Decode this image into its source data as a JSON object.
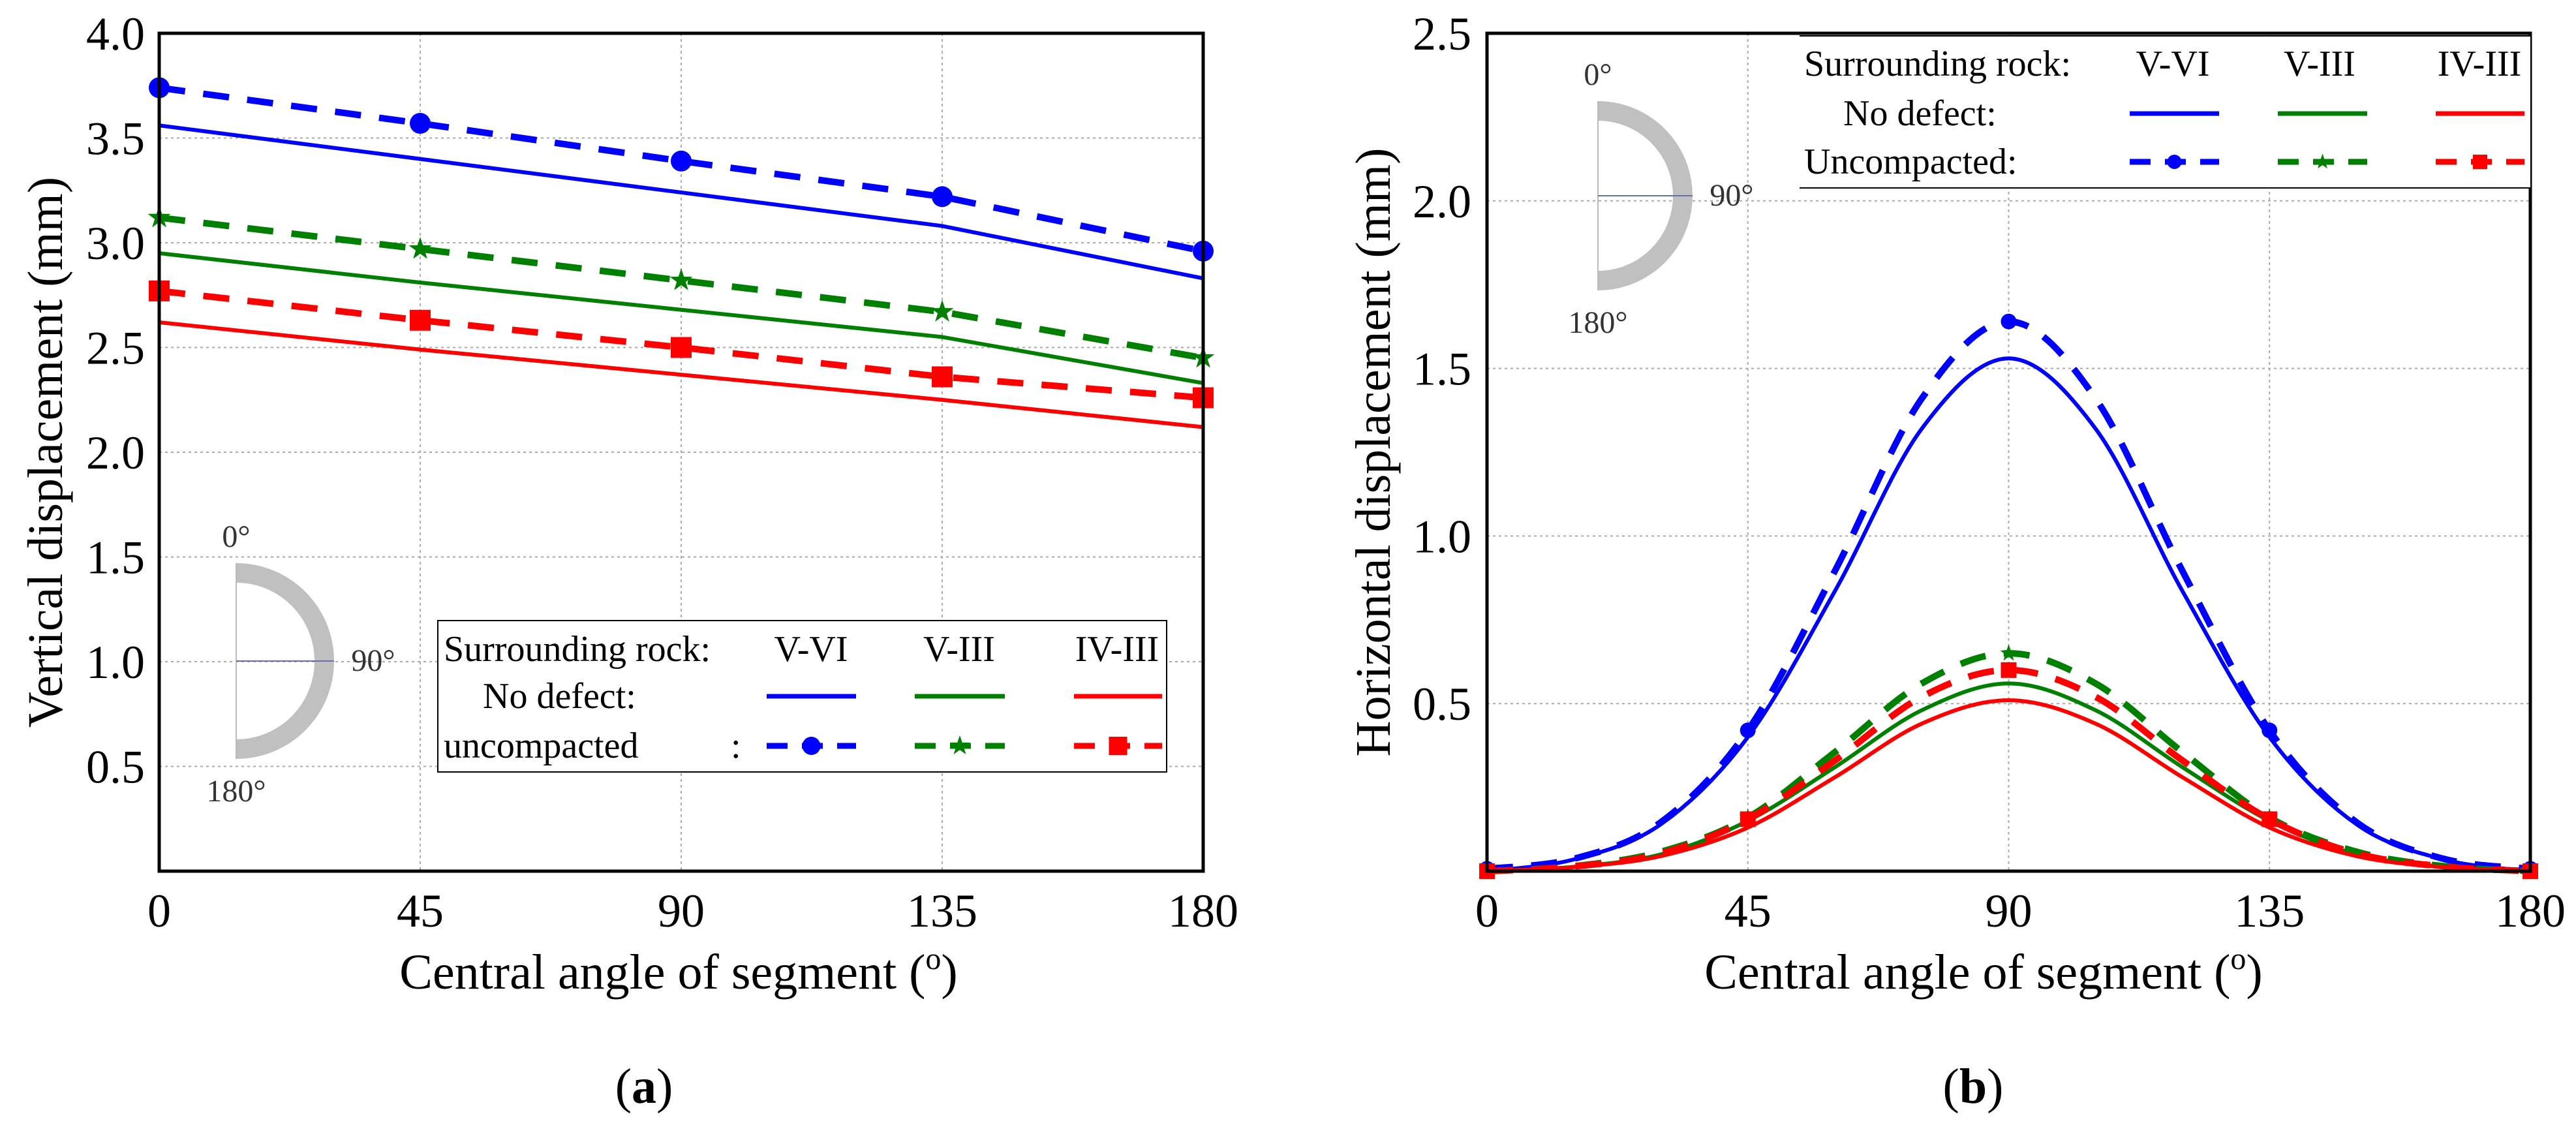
{
  "colors": {
    "V-VI": "#0000ff",
    "V-III": "#008000",
    "IV-III": "#ff0000",
    "inset_ring": "#c0c0c0"
  },
  "chart_data": [
    {
      "id": "a",
      "panel_label": "a",
      "type": "line",
      "xlabel": "Central angle of segment (",
      "xlabel_sup": "o",
      "xlabel_end": ")",
      "ylabel": "Vertical displacement (mm)",
      "xlim": [
        0,
        180
      ],
      "ylim": [
        0,
        4.0
      ],
      "xticks": [
        0,
        45,
        90,
        135,
        180
      ],
      "xtick_labels": [
        "0",
        "45",
        "90",
        "135",
        "180"
      ],
      "yticks": [
        0.5,
        1.0,
        1.5,
        2.0,
        2.5,
        3.0,
        3.5,
        4.0
      ],
      "ytick_labels": [
        "0.5",
        "1.0",
        "1.5",
        "2.0",
        "2.5",
        "3.0",
        "3.5",
        "4.0"
      ],
      "grid": true,
      "x": [
        0,
        45,
        90,
        135,
        180
      ],
      "series": [
        {
          "name": "No defect V-VI",
          "rock": "V-VI",
          "style": "solid",
          "values": [
            3.56,
            3.4,
            3.24,
            3.08,
            2.83
          ]
        },
        {
          "name": "Uncompacted V-VI",
          "rock": "V-VI",
          "style": "dashed",
          "marker": "circle",
          "values": [
            3.74,
            3.57,
            3.39,
            3.22,
            2.96
          ]
        },
        {
          "name": "No defect V-III",
          "rock": "V-III",
          "style": "solid",
          "values": [
            2.95,
            2.81,
            2.68,
            2.55,
            2.33
          ]
        },
        {
          "name": "Uncompacted V-III",
          "rock": "V-III",
          "style": "dashed",
          "marker": "star",
          "values": [
            3.12,
            2.97,
            2.82,
            2.67,
            2.45
          ]
        },
        {
          "name": "No defect IV-III",
          "rock": "IV-III",
          "style": "solid",
          "values": [
            2.62,
            2.49,
            2.37,
            2.25,
            2.12
          ]
        },
        {
          "name": "Uncompacted IV-III",
          "rock": "IV-III",
          "style": "dashed",
          "marker": "square",
          "values": [
            2.77,
            2.63,
            2.5,
            2.36,
            2.26
          ]
        }
      ],
      "legend": {
        "placement": "bottom-right",
        "header": "Surrounding rock:",
        "columns": [
          "V-VI",
          "V-III",
          "IV-III"
        ],
        "row1": "No defect:",
        "row2": "uncompacted",
        "row2_colon": ":"
      },
      "inset": {
        "placement": "bottom-left",
        "top": "0°",
        "mid": "90°",
        "bottom": "180°"
      }
    },
    {
      "id": "b",
      "panel_label": "b",
      "type": "line",
      "xlabel": "Central angle of segment (",
      "xlabel_sup": "o",
      "xlabel_end": ")",
      "ylabel": "Horizontal displacement (mm)",
      "xlim": [
        0,
        180
      ],
      "ylim": [
        0,
        2.5
      ],
      "xticks": [
        0,
        45,
        90,
        135,
        180
      ],
      "xtick_labels": [
        "0",
        "45",
        "90",
        "135",
        "180"
      ],
      "yticks": [
        0.5,
        1.0,
        1.5,
        2.0,
        2.5
      ],
      "ytick_labels": [
        "0.5",
        "1.0",
        "1.5",
        "2.0",
        "2.5"
      ],
      "grid": true,
      "x": [
        0,
        15,
        30,
        45,
        60,
        75,
        90,
        105,
        120,
        135,
        150,
        165,
        180
      ],
      "marker_x": [
        0,
        45,
        90,
        135,
        180
      ],
      "series": [
        {
          "name": "No defect V-VI",
          "rock": "V-VI",
          "style": "solid",
          "values": [
            0,
            0.035,
            0.14,
            0.4,
            0.835,
            1.32,
            1.53,
            1.32,
            0.835,
            0.4,
            0.14,
            0.035,
            0
          ]
        },
        {
          "name": "Uncompacted V-VI",
          "rock": "V-VI",
          "style": "dashed",
          "marker": "circle",
          "values": [
            0.007,
            0.037,
            0.146,
            0.42,
            0.895,
            1.41,
            1.64,
            1.41,
            0.895,
            0.42,
            0.146,
            0.037,
            0.007
          ]
        },
        {
          "name": "No defect V-III",
          "rock": "V-III",
          "style": "solid",
          "values": [
            0,
            0.013,
            0.05,
            0.15,
            0.31,
            0.48,
            0.56,
            0.48,
            0.31,
            0.15,
            0.05,
            0.013,
            0
          ]
        },
        {
          "name": "Uncompacted V-III",
          "rock": "V-III",
          "style": "dashed",
          "marker": "star",
          "values": [
            0,
            0.015,
            0.058,
            0.16,
            0.355,
            0.56,
            0.65,
            0.56,
            0.355,
            0.16,
            0.058,
            0.015,
            0
          ]
        },
        {
          "name": "No defect IV-III",
          "rock": "IV-III",
          "style": "solid",
          "values": [
            0,
            0.012,
            0.045,
            0.13,
            0.28,
            0.44,
            0.51,
            0.44,
            0.28,
            0.13,
            0.045,
            0.012,
            0
          ]
        },
        {
          "name": "Uncompacted IV-III",
          "rock": "IV-III",
          "style": "dashed",
          "marker": "square",
          "values": [
            0,
            0.014,
            0.053,
            0.155,
            0.33,
            0.52,
            0.6,
            0.52,
            0.33,
            0.155,
            0.053,
            0.014,
            0
          ]
        }
      ],
      "legend": {
        "placement": "top-right",
        "header": "Surrounding rock:",
        "columns": [
          "V-VI",
          "V-III",
          "IV-III"
        ],
        "row1": "No defect:",
        "row2": "Uncompacted:",
        "row2_colon": ""
      },
      "inset": {
        "placement": "top-left",
        "top": "0°",
        "mid": "90°",
        "bottom": "180°"
      }
    }
  ]
}
